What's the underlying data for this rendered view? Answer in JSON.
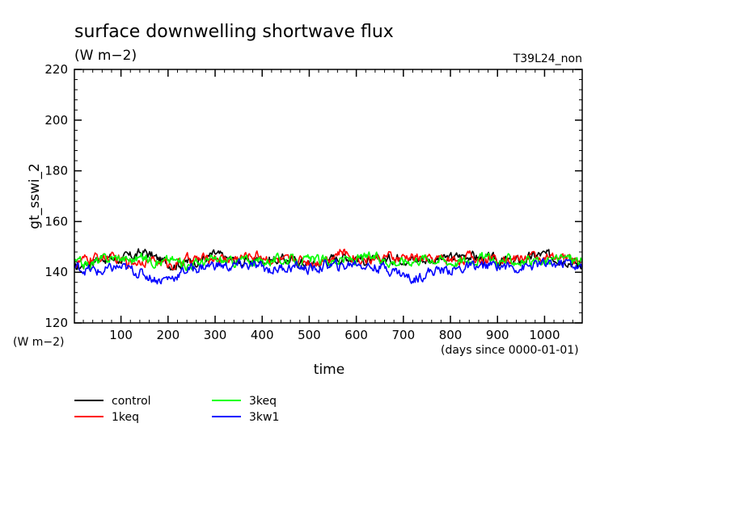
{
  "chart_data": {
    "type": "line",
    "title": "surface downwelling shortwave flux",
    "subtitle": "(W m−2)",
    "run_label": "T39L24_non",
    "xlabel": "time",
    "x_units": "(days since 0000-01-01)",
    "ylabel": "gt_sswi_2",
    "y_units": "(W m−2)",
    "xlim": [
      1,
      1080
    ],
    "ylim": [
      120,
      220
    ],
    "x_ticks": [
      100,
      200,
      300,
      400,
      500,
      600,
      700,
      800,
      900,
      1000
    ],
    "y_ticks": [
      120,
      140,
      160,
      180,
      200,
      220
    ],
    "grid": false,
    "legend_placement": "below",
    "series": [
      {
        "name": "control",
        "color": "#000000",
        "x": [
          1,
          30,
          60,
          90,
          120,
          150,
          180,
          210,
          240,
          270,
          300,
          330,
          360,
          390,
          420,
          450,
          480,
          510,
          540,
          570,
          600,
          630,
          660,
          690,
          720,
          750,
          780,
          810,
          840,
          870,
          900,
          930,
          960,
          990,
          1020,
          1050,
          1080
        ],
        "values": [
          141,
          144,
          146,
          145,
          146,
          148,
          145,
          143,
          144,
          145,
          147,
          145,
          144,
          145,
          145,
          145,
          144,
          143,
          145,
          146,
          146,
          144,
          145,
          146,
          145,
          145,
          145,
          146,
          147,
          145,
          145,
          144,
          145,
          147,
          146,
          145,
          142
        ]
      },
      {
        "name": "1keq",
        "color": "#ff0000",
        "x": [
          1,
          30,
          60,
          90,
          120,
          150,
          180,
          210,
          240,
          270,
          300,
          330,
          360,
          390,
          420,
          450,
          480,
          510,
          540,
          570,
          600,
          630,
          660,
          690,
          720,
          750,
          780,
          810,
          840,
          870,
          900,
          930,
          960,
          990,
          1020,
          1050,
          1080
        ],
        "values": [
          143,
          145,
          146,
          145,
          144,
          145,
          144,
          143,
          145,
          145,
          146,
          145,
          146,
          147,
          145,
          144,
          145,
          144,
          146,
          148,
          146,
          145,
          146,
          145,
          146,
          145,
          145,
          145,
          146,
          145,
          146,
          145,
          146,
          146,
          145,
          146,
          144
        ]
      },
      {
        "name": "3keq",
        "color": "#00ff00",
        "x": [
          1,
          30,
          60,
          90,
          120,
          150,
          180,
          210,
          240,
          270,
          300,
          330,
          360,
          390,
          420,
          450,
          480,
          510,
          540,
          570,
          600,
          630,
          660,
          690,
          720,
          750,
          780,
          810,
          840,
          870,
          900,
          930,
          960,
          990,
          1020,
          1050,
          1080
        ],
        "values": [
          144,
          143,
          145,
          146,
          145,
          146,
          144,
          145,
          143,
          144,
          145,
          144,
          145,
          144,
          145,
          145,
          144,
          145,
          144,
          145,
          145,
          146,
          145,
          144,
          145,
          146,
          145,
          144,
          145,
          146,
          144,
          145,
          144,
          143,
          145,
          146,
          144
        ]
      },
      {
        "name": "3kw1",
        "color": "#0000ff",
        "x": [
          1,
          30,
          60,
          90,
          120,
          150,
          180,
          210,
          240,
          270,
          300,
          330,
          360,
          390,
          420,
          450,
          480,
          510,
          540,
          570,
          600,
          630,
          660,
          690,
          720,
          750,
          780,
          810,
          840,
          870,
          900,
          930,
          960,
          990,
          1020,
          1050,
          1080
        ],
        "values": [
          142,
          141,
          140,
          142,
          141,
          139,
          137,
          138,
          141,
          142,
          143,
          142,
          143,
          142,
          141,
          142,
          142,
          141,
          143,
          142,
          144,
          142,
          142,
          140,
          137,
          140,
          141,
          141,
          142,
          142,
          143,
          142,
          142,
          143,
          143,
          144,
          141
        ]
      }
    ]
  }
}
